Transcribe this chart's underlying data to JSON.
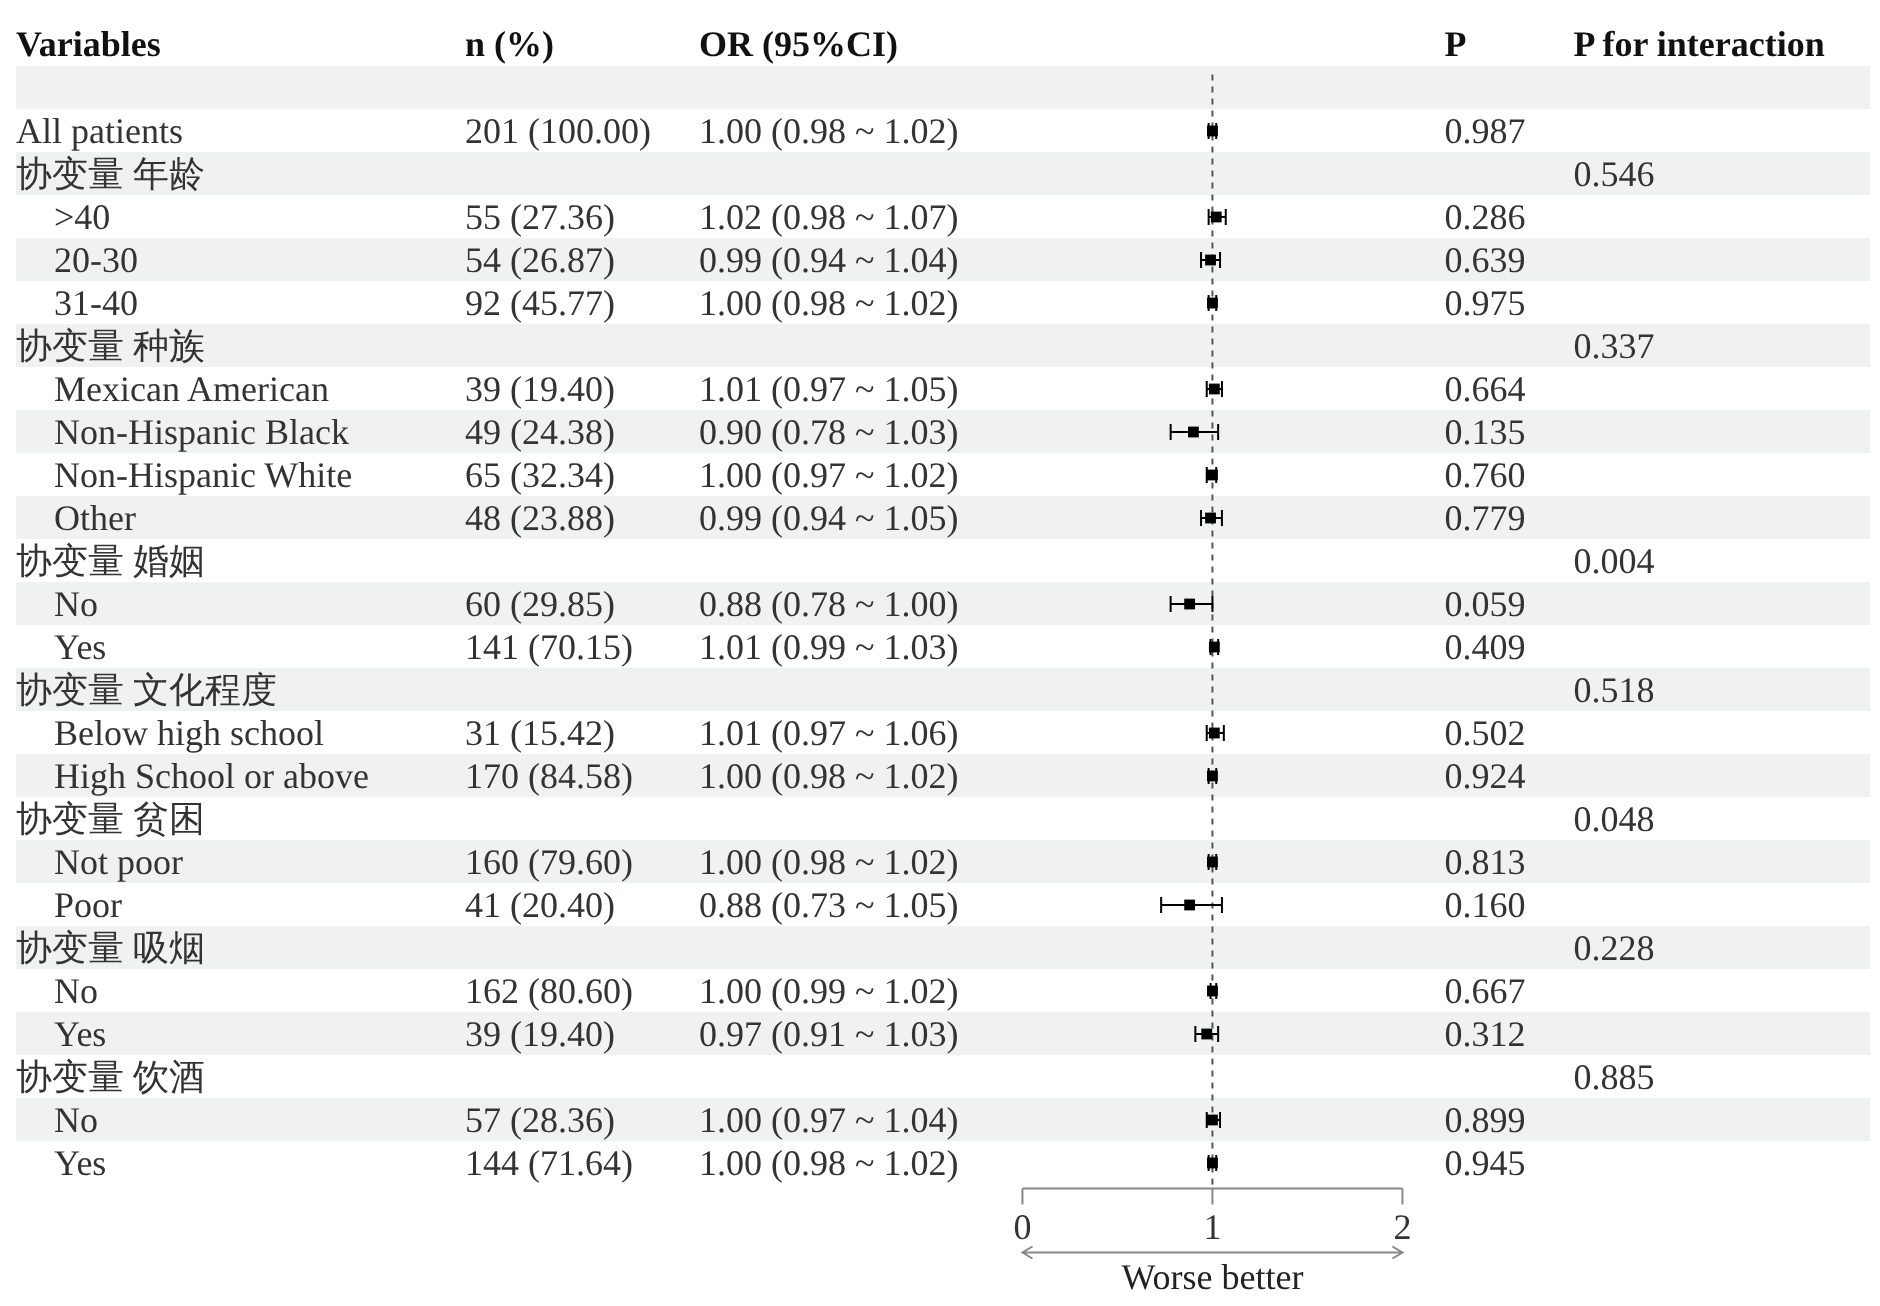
{
  "chart_data": [
    {
      "type": "other",
      "ylabel": "Variables",
      "categories": [
        "n (%)",
        "OR (95%CI)"
      ],
      "y_categories": [
        null,
        "All patients",
        "协变量 年龄",
        ">40",
        "20-30",
        "31-40",
        "协变量 种族",
        "Mexican American",
        "Non-Hispanic Black",
        "Non-Hispanic White",
        "Other",
        "协变量 婚姻",
        "No",
        "Yes",
        "协变量 文化程度",
        "Below high school",
        "High School or above",
        "协变量 贫困",
        "Not poor",
        "Poor",
        "协变量 吸烟",
        "No",
        "Yes",
        "协变量 饮酒",
        "No",
        "Yes"
      ],
      "cell_labels": [
        [
          null,
          null
        ],
        [
          "201 (100.00)",
          "1.00 (0.98 ~ 1.02)"
        ],
        [
          null,
          null
        ],
        [
          "55 (27.36)",
          "1.02 (0.98 ~ 1.07)"
        ],
        [
          "54 (26.87)",
          "0.99 (0.94 ~ 1.04)"
        ],
        [
          "92 (45.77)",
          "1.00 (0.98 ~ 1.02)"
        ],
        [
          null,
          null
        ],
        [
          "39 (19.40)",
          "1.01 (0.97 ~ 1.05)"
        ],
        [
          "49 (24.38)",
          "0.90 (0.78 ~ 1.03)"
        ],
        [
          "65 (32.34)",
          "1.00 (0.97 ~ 1.02)"
        ],
        [
          "48 (23.88)",
          "0.99 (0.94 ~ 1.05)"
        ],
        [
          null,
          null
        ],
        [
          "60 (29.85)",
          "0.88 (0.78 ~ 1.00)"
        ],
        [
          "141 (70.15)",
          "1.01 (0.99 ~ 1.03)"
        ],
        [
          null,
          null
        ],
        [
          "31 (15.42)",
          "1.01 (0.97 ~ 1.06)"
        ],
        [
          "170 (84.58)",
          "1.00 (0.98 ~ 1.02)"
        ],
        [
          null,
          null
        ],
        [
          "160 (79.60)",
          "1.00 (0.98 ~ 1.02)"
        ],
        [
          "41 (20.40)",
          "0.88 (0.73 ~ 1.05)"
        ],
        [
          null,
          null
        ],
        [
          "162 (80.60)",
          "1.00 (0.99 ~ 1.02)"
        ],
        [
          "39 (19.40)",
          "0.97 (0.91 ~ 1.03)"
        ],
        [
          null,
          null
        ],
        [
          "57 (28.36)",
          "1.00 (0.97 ~ 1.04)"
        ],
        [
          "144 (71.64)",
          "1.00 (0.98 ~ 1.02)"
        ]
      ]
    },
    {
      "type": "scatter",
      "orientation": "horizontal",
      "marker": "square",
      "xlabel": "Worse better",
      "xlim": [
        0,
        2
      ],
      "xticks": [
        0,
        1,
        2
      ],
      "categories": [
        null,
        null,
        null,
        null,
        null,
        null,
        null,
        null,
        null,
        null,
        null,
        null,
        null,
        null,
        null,
        null,
        null,
        null,
        null,
        null,
        null,
        null,
        null,
        null,
        null,
        null
      ],
      "series": [
        {
          "color": "#000000",
          "values": [
            null,
            1.0,
            null,
            1.02,
            0.99,
            1.0,
            null,
            1.01,
            0.9,
            1.0,
            0.99,
            null,
            0.88,
            1.01,
            null,
            1.01,
            1.0,
            null,
            1.0,
            0.88,
            null,
            1.0,
            0.97,
            null,
            1.0,
            1.0
          ],
          "errors": [
            null,
            [
              0.98,
              1.02
            ],
            null,
            [
              0.98,
              1.07
            ],
            [
              0.94,
              1.04
            ],
            [
              0.98,
              1.02
            ],
            null,
            [
              0.97,
              1.05
            ],
            [
              0.78,
              1.03
            ],
            [
              0.97,
              1.02
            ],
            [
              0.94,
              1.05
            ],
            null,
            [
              0.78,
              1.0
            ],
            [
              0.99,
              1.03
            ],
            null,
            [
              0.97,
              1.06
            ],
            [
              0.98,
              1.02
            ],
            null,
            [
              0.98,
              1.02
            ],
            [
              0.73,
              1.05
            ],
            null,
            [
              0.99,
              1.02
            ],
            [
              0.91,
              1.03
            ],
            null,
            [
              0.97,
              1.04
            ],
            [
              0.98,
              1.02
            ]
          ]
        }
      ],
      "ref_lines": [
        {
          "axis": "x",
          "value": 1,
          "line_style": "dashed"
        }
      ]
    },
    {
      "type": "other",
      "categories": [
        "P",
        "P for interaction"
      ],
      "cell_labels": [
        [
          null,
          null
        ],
        [
          "0.987",
          null
        ],
        [
          null,
          "0.546"
        ],
        [
          "0.286",
          null
        ],
        [
          "0.639",
          null
        ],
        [
          "0.975",
          null
        ],
        [
          null,
          "0.337"
        ],
        [
          "0.664",
          null
        ],
        [
          "0.135",
          null
        ],
        [
          "0.760",
          null
        ],
        [
          "0.779",
          null
        ],
        [
          null,
          "0.004"
        ],
        [
          "0.059",
          null
        ],
        [
          "0.409",
          null
        ],
        [
          null,
          "0.518"
        ],
        [
          "0.502",
          null
        ],
        [
          "0.924",
          null
        ],
        [
          null,
          "0.048"
        ],
        [
          "0.813",
          null
        ],
        [
          "0.160",
          null
        ],
        [
          null,
          "0.228"
        ],
        [
          "0.667",
          null
        ],
        [
          "0.312",
          null
        ],
        [
          null,
          "0.885"
        ],
        [
          "0.899",
          null
        ],
        [
          "0.945",
          null
        ]
      ]
    }
  ]
}
